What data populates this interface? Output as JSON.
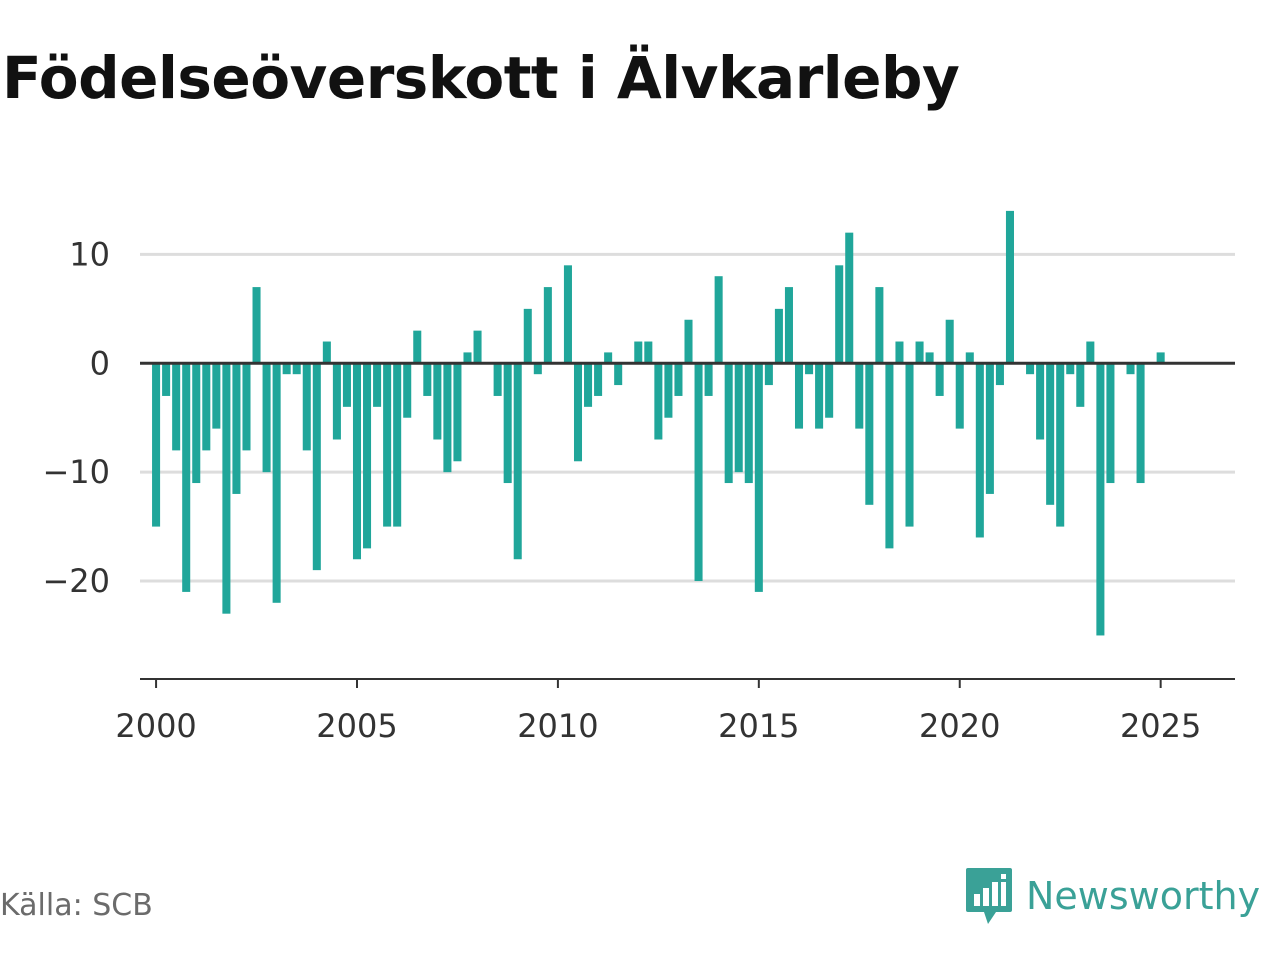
{
  "title": "Födelseöverskott i Älvkarleby",
  "source": "Källa: SCB",
  "brand": {
    "name": "Newsworthy",
    "icon": "chart-speech-bubble-icon",
    "color": "#3aa197"
  },
  "colors": {
    "bar": "#20a69a",
    "grid": "#dddddd",
    "baseline": "#333333",
    "axis": "#333333",
    "text": "#333333"
  },
  "chart_data": {
    "type": "bar",
    "title": "Födelseöverskott i Älvkarleby",
    "xlabel": "",
    "ylabel": "",
    "frequency": "quarterly",
    "start": "2000 Q1",
    "xlim": [
      1999.6,
      2026.85
    ],
    "ylim": [
      -29,
      15
    ],
    "x_ticks": [
      2000,
      2005,
      2010,
      2015,
      2020,
      2025
    ],
    "y_ticks": [
      10,
      0,
      -10,
      -20
    ],
    "y_tick_labels": [
      "10",
      "0",
      "−10",
      "−20"
    ],
    "grid": true,
    "values": [
      -15,
      -3,
      -8,
      -21,
      -11,
      -8,
      -6,
      -23,
      -12,
      -8,
      7,
      -10,
      -22,
      -1,
      -1,
      -8,
      -19,
      2,
      -7,
      -4,
      -18,
      -17,
      -4,
      -15,
      -15,
      -5,
      3,
      -3,
      -7,
      -10,
      -9,
      1,
      3,
      0,
      -3,
      -11,
      -18,
      5,
      -1,
      7,
      0,
      9,
      -9,
      -4,
      -3,
      1,
      -2,
      0,
      2,
      2,
      -7,
      -5,
      -3,
      4,
      -20,
      -3,
      8,
      -11,
      -10,
      -11,
      -21,
      -2,
      5,
      7,
      -6,
      -1,
      -6,
      -5,
      9,
      12,
      -6,
      -13,
      7,
      -17,
      2,
      -15,
      2,
      1,
      -3,
      4,
      -6,
      1,
      -16,
      -12,
      -2,
      14,
      0,
      -1,
      -7,
      -13,
      -15,
      -1,
      -4,
      2,
      -25,
      -11,
      0,
      -1,
      -11,
      0,
      1
    ]
  }
}
